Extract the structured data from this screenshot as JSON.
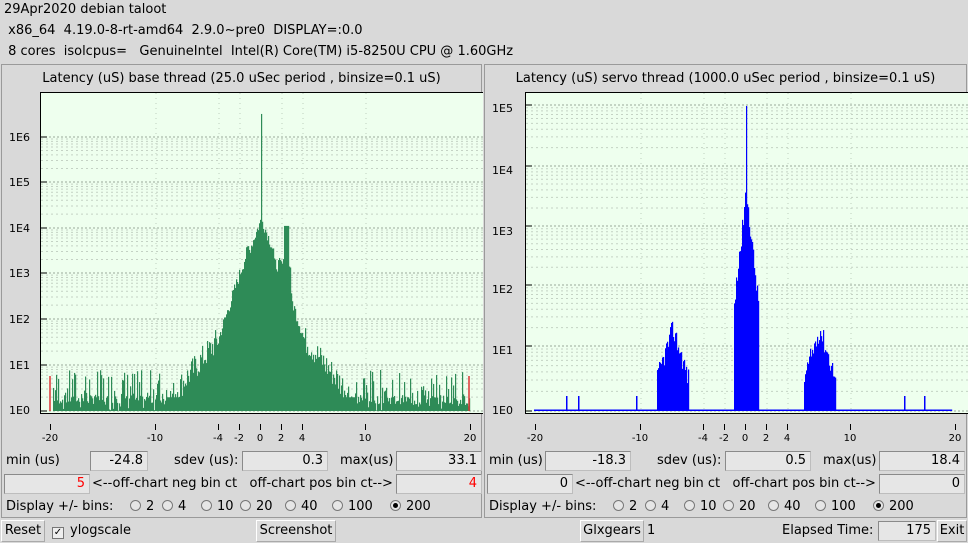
{
  "header": {
    "line1": "29Apr2020 debian taloot",
    "line2": " x86_64  4.19.0-8-rt-amd64  2.9.0~pre0  DISPLAY=:0.0",
    "line3": " 8 cores  isolcpus=   GenuineIntel  Intel(R) Core(TM) i5-8250U CPU @ 1.60GHz"
  },
  "base": {
    "title": "Latency (uS) base thread (25.0 uSec period , binsize=0.1 uS)",
    "ylabels": [
      "1E6",
      "1E5",
      "1E4",
      "1E3",
      "1E2",
      "1E1",
      "1E0"
    ],
    "xticks": [
      "-20",
      "-10",
      "-4",
      "-2",
      "0",
      "2",
      "4",
      "10",
      "20"
    ],
    "min_label": "min (us)",
    "min": "-24.8",
    "sdev_label": "sdev (us):",
    "sdev": "0.3",
    "max_label": "max(us)",
    "max": "33.1",
    "neg_ct": "5",
    "offchart_label": "<--off-chart neg bin ct   off-chart pos bin ct-->",
    "pos_ct": "4",
    "bins_label": "Display +/- bins:",
    "bins": [
      "2",
      "4",
      "10",
      "20",
      "40",
      "100",
      "200"
    ],
    "selected_bin": "200",
    "color": "#2e8b57"
  },
  "servo": {
    "title": "Latency (uS) servo thread (1000.0 uSec period , binsize=0.1 uS)",
    "ylabels": [
      "1E5",
      "1E4",
      "1E3",
      "1E2",
      "1E1",
      "1E0"
    ],
    "xticks": [
      "-20",
      "-10",
      "-4",
      "-2",
      "0",
      "2",
      "4",
      "10",
      "20"
    ],
    "min_label": "min (us)",
    "min": "-18.3",
    "sdev_label": "sdev (us):",
    "sdev": "0.5",
    "max_label": "max(us)",
    "max": "18.4",
    "neg_ct": "0",
    "offchart_label": "<--off-chart neg bin ct   off-chart pos bin ct-->",
    "pos_ct": "0",
    "bins_label": "Display +/- bins:",
    "bins": [
      "2",
      "4",
      "10",
      "20",
      "40",
      "100",
      "200"
    ],
    "selected_bin": "200",
    "color": "#0000ff"
  },
  "footer": {
    "reset": "Reset",
    "ylog": "ylogscale",
    "ylog_checked": "✓",
    "screenshot": "Screenshot",
    "glx": "Glxgears",
    "glx_count": "1",
    "elapsed_label": "Elapsed Time:",
    "elapsed": "175",
    "exit": "Exit"
  }
}
